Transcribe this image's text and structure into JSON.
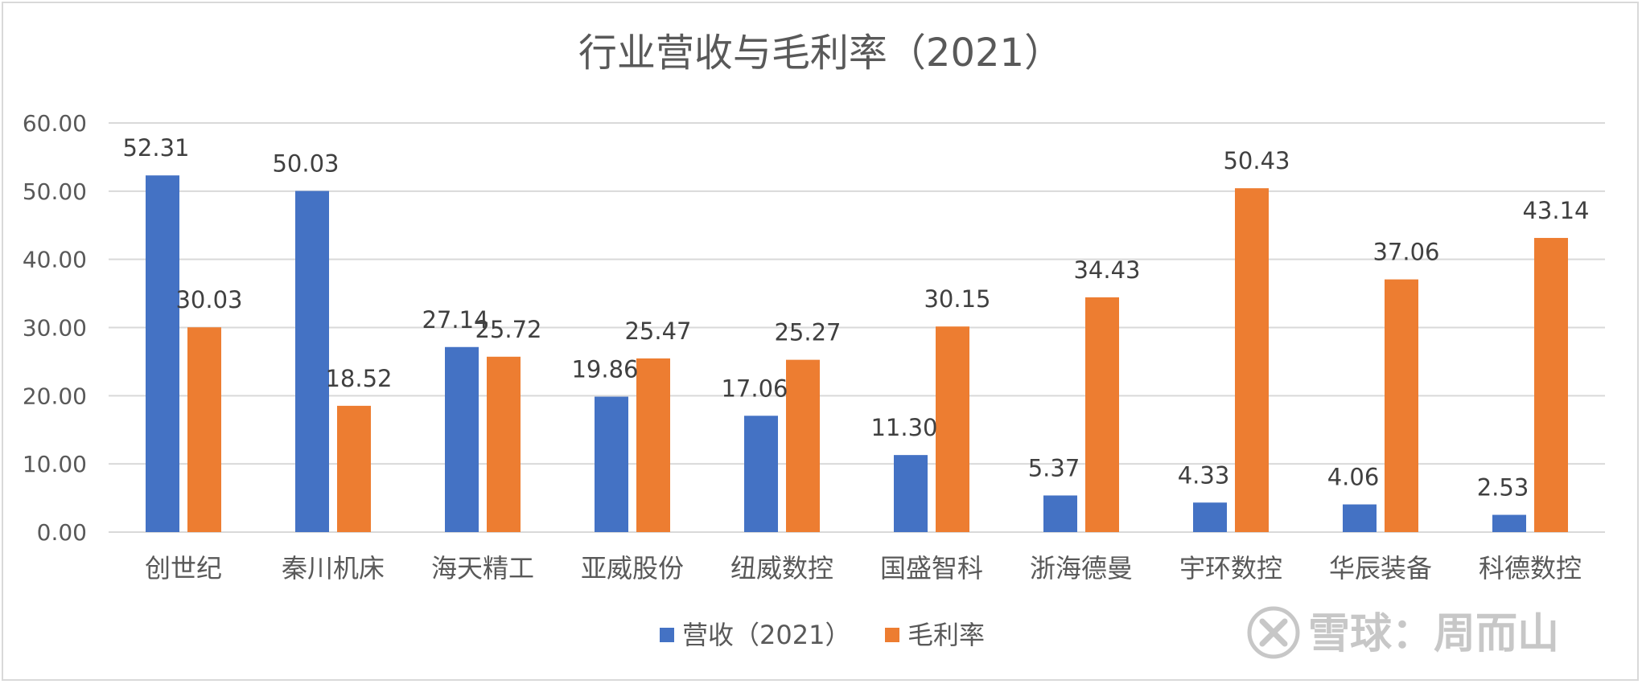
{
  "chart_data": {
    "type": "bar",
    "title": "行业营收与毛利率（2021）",
    "categories": [
      "创世纪",
      "秦川机床",
      "海天精工",
      "亚威股份",
      "纽威数控",
      "国盛智科",
      "浙海德曼",
      "宇环数控",
      "华辰装备",
      "科德数控"
    ],
    "series": [
      {
        "name": "营收（2021）",
        "color": "#4472c4",
        "values": [
          52.31,
          50.03,
          27.14,
          19.86,
          17.06,
          11.3,
          5.37,
          4.33,
          4.06,
          2.53
        ],
        "labels": [
          "52.31",
          "50.03",
          "27.14",
          "19.86",
          "17.06",
          "11.30",
          "5.37",
          "4.33",
          "4.06",
          "2.53"
        ]
      },
      {
        "name": "毛利率",
        "color": "#ed7d31",
        "values": [
          30.03,
          18.52,
          25.72,
          25.47,
          25.27,
          30.15,
          34.43,
          50.43,
          37.06,
          43.14
        ],
        "labels": [
          "30.03",
          "18.52",
          "25.72",
          "25.47",
          "25.27",
          "30.15",
          "34.43",
          "50.43",
          "37.06",
          "43.14"
        ]
      }
    ],
    "ylim": [
      0,
      60
    ],
    "yticks": [
      "0.00",
      "10.00",
      "20.00",
      "30.00",
      "40.00",
      "50.00",
      "60.00"
    ],
    "grid": true,
    "legend": "bottom"
  },
  "watermark": "雪球：周而山"
}
